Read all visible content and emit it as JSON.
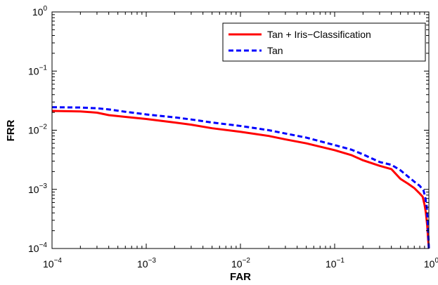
{
  "chart_data": {
    "type": "line",
    "xlabel": "FAR",
    "ylabel": "FRR",
    "x_scale": "log",
    "y_scale": "log",
    "xlim": [
      0.0001,
      1
    ],
    "ylim": [
      0.0001,
      1
    ],
    "x_ticks": [
      {
        "value": 0.0001,
        "base": "10",
        "exp": "−4"
      },
      {
        "value": 0.001,
        "base": "10",
        "exp": "−3"
      },
      {
        "value": 0.01,
        "base": "10",
        "exp": "−2"
      },
      {
        "value": 0.1,
        "base": "10",
        "exp": "−1"
      },
      {
        "value": 1,
        "base": "10",
        "exp": "0"
      }
    ],
    "y_ticks": [
      {
        "value": 0.0001,
        "base": "10",
        "exp": "−4"
      },
      {
        "value": 0.001,
        "base": "10",
        "exp": "−3"
      },
      {
        "value": 0.01,
        "base": "10",
        "exp": "−2"
      },
      {
        "value": 0.1,
        "base": "10",
        "exp": "−1"
      },
      {
        "value": 1,
        "base": "10",
        "exp": "0"
      }
    ],
    "grid": false,
    "legend_position": "top-right",
    "series": [
      {
        "name": "Tan + Iris−Classification",
        "color": "#ff0000",
        "style": "solid",
        "points": [
          [
            0.0001,
            0.0212
          ],
          [
            0.0002,
            0.0208
          ],
          [
            0.0003,
            0.0198
          ],
          [
            0.0004,
            0.018
          ],
          [
            0.0006,
            0.0168
          ],
          [
            0.001,
            0.0155
          ],
          [
            0.002,
            0.0135
          ],
          [
            0.003,
            0.0124
          ],
          [
            0.005,
            0.0108
          ],
          [
            0.01,
            0.0094
          ],
          [
            0.02,
            0.008
          ],
          [
            0.03,
            0.007
          ],
          [
            0.05,
            0.006
          ],
          [
            0.1,
            0.0046
          ],
          [
            0.15,
            0.0038
          ],
          [
            0.2,
            0.0031
          ],
          [
            0.3,
            0.0025
          ],
          [
            0.4,
            0.0022
          ],
          [
            0.5,
            0.0015
          ],
          [
            0.6,
            0.00125
          ],
          [
            0.7,
            0.00105
          ],
          [
            0.8,
            0.00085
          ],
          [
            0.86,
            0.00075
          ],
          [
            0.9,
            0.00055
          ],
          [
            0.93,
            0.0004
          ],
          [
            0.96,
            0.00025
          ],
          [
            0.98,
            0.00015
          ],
          [
            1.0,
            0.0001
          ]
        ]
      },
      {
        "name": "Tan",
        "color": "#0000ff",
        "style": "dashed",
        "points": [
          [
            0.0001,
            0.0245
          ],
          [
            0.0002,
            0.0242
          ],
          [
            0.0003,
            0.0235
          ],
          [
            0.0004,
            0.0225
          ],
          [
            0.0006,
            0.0205
          ],
          [
            0.001,
            0.0185
          ],
          [
            0.002,
            0.0165
          ],
          [
            0.003,
            0.0152
          ],
          [
            0.005,
            0.0135
          ],
          [
            0.01,
            0.0118
          ],
          [
            0.02,
            0.01
          ],
          [
            0.03,
            0.0088
          ],
          [
            0.05,
            0.0075
          ],
          [
            0.1,
            0.0056
          ],
          [
            0.15,
            0.0047
          ],
          [
            0.2,
            0.0039
          ],
          [
            0.3,
            0.0029
          ],
          [
            0.4,
            0.0026
          ],
          [
            0.5,
            0.0021
          ],
          [
            0.6,
            0.00165
          ],
          [
            0.7,
            0.00135
          ],
          [
            0.8,
            0.00115
          ],
          [
            0.88,
            0.00095
          ],
          [
            0.92,
            0.0007
          ],
          [
            0.95,
            0.0005
          ],
          [
            0.97,
            0.0003
          ],
          [
            0.99,
            0.00015
          ],
          [
            1.0,
            0.0001
          ]
        ]
      }
    ]
  }
}
